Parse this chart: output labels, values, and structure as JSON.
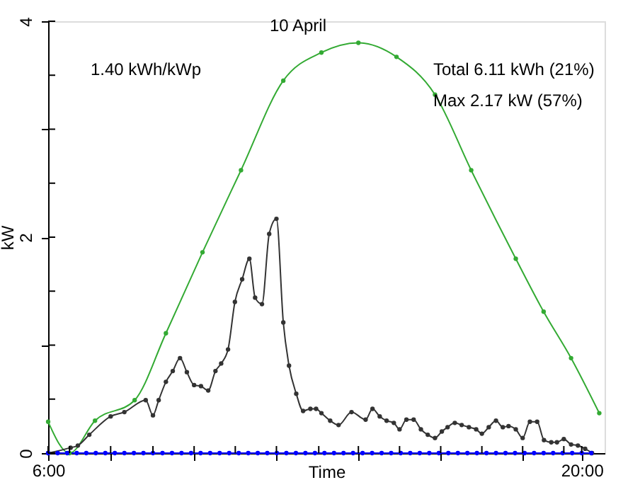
{
  "chart_data": {
    "type": "line",
    "title": "10 April",
    "xlabel": "Time",
    "ylabel": "kW",
    "annotations": [
      "1.40 kWh/kWp",
      "Total 6.11 kWh (21%)",
      "Max 2.17 kW (57%)"
    ],
    "xlim": [
      6,
      20.6
    ],
    "xticks": [
      {
        "value": 6,
        "label": "6:00"
      },
      {
        "value": 6.56,
        "label": null
      },
      {
        "value": 7.64,
        "label": null
      },
      {
        "value": 8.75,
        "label": null
      },
      {
        "value": 9.83,
        "label": null
      },
      {
        "value": 10.91,
        "label": null
      },
      {
        "value": 11.99,
        "label": null
      },
      {
        "value": 13.1,
        "label": null
      },
      {
        "value": 14.14,
        "label": null
      },
      {
        "value": 15.22,
        "label": null
      },
      {
        "value": 16.3,
        "label": null
      },
      {
        "value": 17.38,
        "label": null
      },
      {
        "value": 18.45,
        "label": null
      },
      {
        "value": 19.53,
        "label": null
      },
      {
        "value": 20,
        "label": "20:00"
      }
    ],
    "ylim": [
      0,
      4
    ],
    "yticks": [
      0,
      {
        "value": 0.5,
        "label": null
      },
      {
        "value": 1,
        "label": null
      },
      {
        "value": 1.5,
        "label": null
      },
      2,
      {
        "value": 2.5,
        "label": null
      },
      {
        "value": 3,
        "label": null
      },
      {
        "value": 3.5,
        "label": null
      },
      4
    ],
    "grid": false,
    "marker": "circle",
    "line_style": "solid",
    "series": [
      {
        "color": "#33aa33",
        "x": [
          6.0,
          6.56,
          7.23,
          8.27,
          9.09,
          10.05,
          11.06,
          12.17,
          13.17,
          14.14,
          15.14,
          16.15,
          17.1,
          18.27,
          19.0,
          19.72,
          20.46
        ],
        "values": [
          0.29,
          0.0,
          0.3,
          0.49,
          1.11,
          1.86,
          2.62,
          3.45,
          3.71,
          3.8,
          3.67,
          3.32,
          2.62,
          1.8,
          1.31,
          0.88,
          0.37
        ]
      },
      {
        "color": "#333333",
        "x": [
          6.0,
          6.59,
          6.78,
          7.08,
          7.64,
          8.0,
          8.56,
          8.75,
          8.9,
          9.09,
          9.27,
          9.46,
          9.64,
          9.83,
          10.01,
          10.2,
          10.39,
          10.54,
          10.72,
          10.9,
          11.09,
          11.28,
          11.43,
          11.61,
          11.8,
          11.99,
          12.17,
          12.32,
          12.51,
          12.69,
          12.88,
          13.03,
          13.17,
          13.4,
          13.62,
          13.96,
          14.33,
          14.51,
          14.7,
          14.88,
          15.07,
          15.22,
          15.4,
          15.59,
          15.78,
          15.96,
          16.15,
          16.33,
          16.48,
          16.67,
          16.85,
          17.04,
          17.23,
          17.38,
          17.56,
          17.75,
          17.93,
          18.08,
          18.27,
          18.45,
          18.64,
          18.83,
          19.01,
          19.2,
          19.35,
          19.53,
          19.72,
          19.9,
          20.09,
          20.27
        ],
        "values": [
          0.0,
          0.05,
          0.07,
          0.17,
          0.34,
          0.38,
          0.49,
          0.35,
          0.49,
          0.66,
          0.76,
          0.88,
          0.75,
          0.63,
          0.62,
          0.58,
          0.76,
          0.83,
          0.96,
          1.4,
          1.61,
          1.8,
          1.44,
          1.38,
          2.03,
          2.17,
          1.21,
          0.81,
          0.55,
          0.39,
          0.41,
          0.41,
          0.37,
          0.3,
          0.26,
          0.38,
          0.31,
          0.41,
          0.34,
          0.3,
          0.28,
          0.22,
          0.31,
          0.31,
          0.22,
          0.17,
          0.14,
          0.2,
          0.24,
          0.28,
          0.26,
          0.24,
          0.22,
          0.18,
          0.24,
          0.3,
          0.24,
          0.25,
          0.22,
          0.14,
          0.29,
          0.29,
          0.12,
          0.1,
          0.1,
          0.13,
          0.08,
          0.07,
          0.04,
          0.0
        ]
      },
      {
        "color": "#0000ff",
        "x": [
          6.0,
          6.25,
          6.5,
          6.75,
          7.0,
          7.25,
          7.5,
          7.75,
          8.0,
          8.25,
          8.5,
          8.75,
          9.0,
          9.25,
          9.5,
          9.75,
          10.0,
          10.25,
          10.5,
          10.75,
          11.0,
          11.25,
          11.5,
          11.75,
          12.0,
          12.25,
          12.5,
          12.75,
          13.0,
          13.25,
          13.5,
          13.75,
          14.0,
          14.25,
          14.5,
          14.75,
          15.0,
          15.25,
          15.5,
          15.75,
          16.0,
          16.25,
          16.5,
          16.75,
          17.0,
          17.25,
          17.5,
          17.75,
          18.0,
          18.25,
          18.5,
          18.75,
          19.0,
          19.25,
          19.5,
          19.75,
          20.0,
          20.25
        ],
        "values": [
          0,
          0,
          0,
          0,
          0,
          0,
          0,
          0,
          0,
          0,
          0,
          0,
          0,
          0,
          0,
          0,
          0,
          0,
          0,
          0,
          0,
          0,
          0,
          0,
          0,
          0,
          0,
          0,
          0,
          0,
          0,
          0,
          0,
          0,
          0,
          0,
          0,
          0,
          0,
          0,
          0,
          0,
          0,
          0,
          0,
          0,
          0,
          0,
          0,
          0,
          0,
          0,
          0,
          0,
          0,
          0,
          0,
          0
        ]
      }
    ]
  }
}
